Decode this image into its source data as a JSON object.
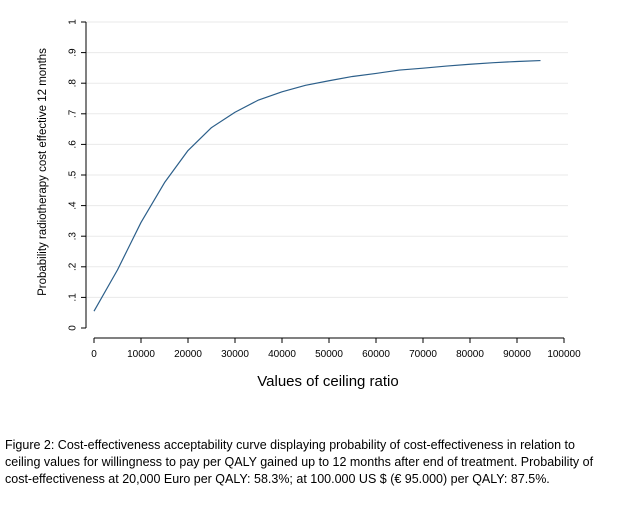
{
  "chart_data": {
    "type": "line",
    "title": "",
    "xlabel": "Values of ceiling ratio",
    "ylabel": "Probability radiotherapy cost effective 12 months",
    "xlim": [
      0,
      100000
    ],
    "ylim": [
      0,
      1
    ],
    "x_ticks": [
      0,
      10000,
      20000,
      30000,
      40000,
      50000,
      60000,
      70000,
      80000,
      90000,
      100000
    ],
    "x_tick_labels": [
      "0",
      "10000",
      "20000",
      "30000",
      "40000",
      "50000",
      "60000",
      "70000",
      "80000",
      "90000",
      "100000"
    ],
    "y_ticks": [
      0,
      0.1,
      0.2,
      0.3,
      0.4,
      0.5,
      0.6,
      0.7,
      0.8,
      0.9,
      1
    ],
    "y_tick_labels": [
      "0",
      ".1",
      ".2",
      ".3",
      ".4",
      ".5",
      ".6",
      ".7",
      ".8",
      ".9",
      "1"
    ],
    "grid": true,
    "series": [
      {
        "x": [
          0,
          5000,
          10000,
          15000,
          20000,
          25000,
          30000,
          35000,
          40000,
          45000,
          50000,
          55000,
          60000,
          65000,
          70000,
          75000,
          80000,
          85000,
          90000,
          95000
        ],
        "values": [
          0.055,
          0.19,
          0.345,
          0.475,
          0.58,
          0.655,
          0.705,
          0.745,
          0.772,
          0.793,
          0.808,
          0.822,
          0.832,
          0.843,
          0.849,
          0.856,
          0.862,
          0.867,
          0.871,
          0.874
        ],
        "color": "#2c5f8a"
      }
    ]
  },
  "caption": {
    "text": "Figure 2: Cost-effectiveness acceptability curve displaying probability of cost-effectiveness in relation to ceiling values for willingness to pay per QALY gained up to 12 months after end of treatment. Probability of cost-effectiveness at 20,000 Euro per QALY:  58.3%; at 100.000 US $ (€ 95.000) per QALY: 87.5%."
  }
}
